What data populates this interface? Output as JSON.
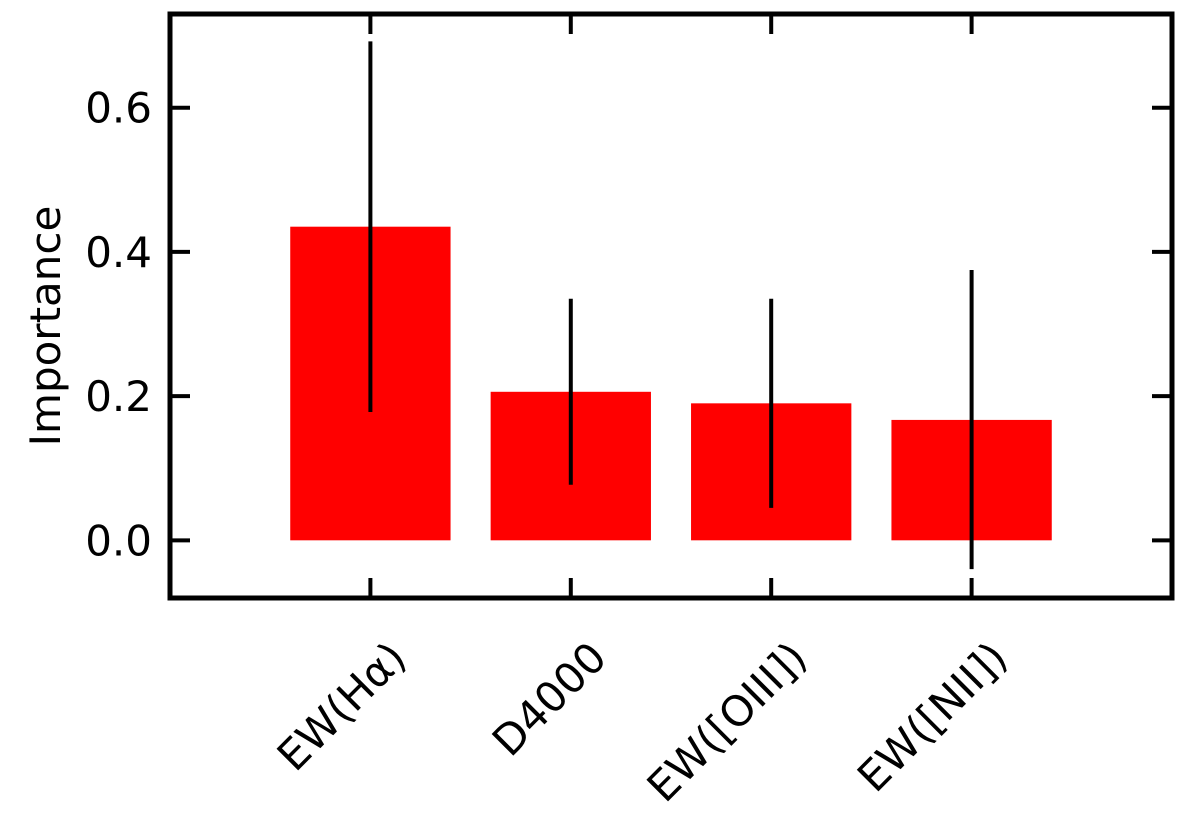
{
  "chart_data": {
    "type": "bar",
    "categories": [
      "EW(Hα)",
      "D4000",
      "EW([OIII])",
      "EW([NII])"
    ],
    "values": [
      0.435,
      0.206,
      0.19,
      0.167
    ],
    "error_low": [
      0.178,
      0.077,
      0.045,
      -0.04
    ],
    "error_high": [
      0.692,
      0.335,
      0.335,
      0.375
    ],
    "title": "",
    "xlabel": "",
    "ylabel": "Importance",
    "ylim": [
      -0.08,
      0.73
    ],
    "yticks": [
      0.0,
      0.2,
      0.4,
      0.6
    ],
    "ytick_labels": [
      "0.0",
      "0.2",
      "0.4",
      "0.6"
    ],
    "grid": false,
    "legend": "none",
    "bar_color": "#ff0000",
    "error_color": "#000000"
  }
}
